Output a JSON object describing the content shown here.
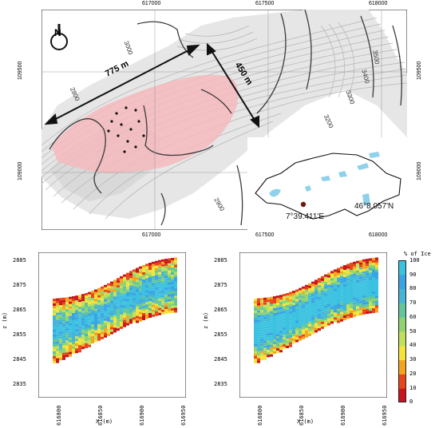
{
  "map": {
    "x_ticks_top": [
      "617000",
      "617500",
      "618000"
    ],
    "x_ticks_bottom": [
      "617000",
      "617500",
      "618000"
    ],
    "y_ticks_left": [
      "109500",
      "109000"
    ],
    "y_ticks_right": [
      "109500",
      "109000"
    ],
    "contour_labels": [
      "3000",
      "2800",
      "3500",
      "3400",
      "3300",
      "3200",
      "2900"
    ],
    "dimension_1": "775 m",
    "dimension_2": "450 m",
    "north_label": "N",
    "inset": {
      "lat": "46°8.057'N",
      "lon": "7°39.411'E"
    },
    "colors": {
      "ice_zone": "#f4b8bd",
      "lakes": "#8fd1ea",
      "contour_dark": "#3a3a3a",
      "contour_light": "#b5b5b5"
    }
  },
  "panel_left": {
    "y_ticks": [
      "2885",
      "2875",
      "2865",
      "2855",
      "2845",
      "2835"
    ],
    "ylabel": "z (m)",
    "x_ticks": [
      "616800",
      "616850",
      "616900",
      "616950"
    ],
    "xlabel": "X (m)"
  },
  "panel_right": {
    "y_ticks": [
      "2885",
      "2875",
      "2865",
      "2855",
      "2845",
      "2835"
    ],
    "ylabel": "z (m)",
    "x_ticks": [
      "616800",
      "616850",
      "616900",
      "616950"
    ],
    "xlabel": "X (m)"
  },
  "colorbar": {
    "title": "% of Ice",
    "ticks": [
      "100",
      "90",
      "80",
      "70",
      "60",
      "50",
      "40",
      "30",
      "20",
      "10",
      "0"
    ],
    "colors": [
      "#c8141b",
      "#e8451a",
      "#f3a41c",
      "#f6e33a",
      "#bfe05a",
      "#8ed36f",
      "#63c69a",
      "#46b4d6",
      "#3aa3e6",
      "#3bc2e0"
    ]
  }
}
